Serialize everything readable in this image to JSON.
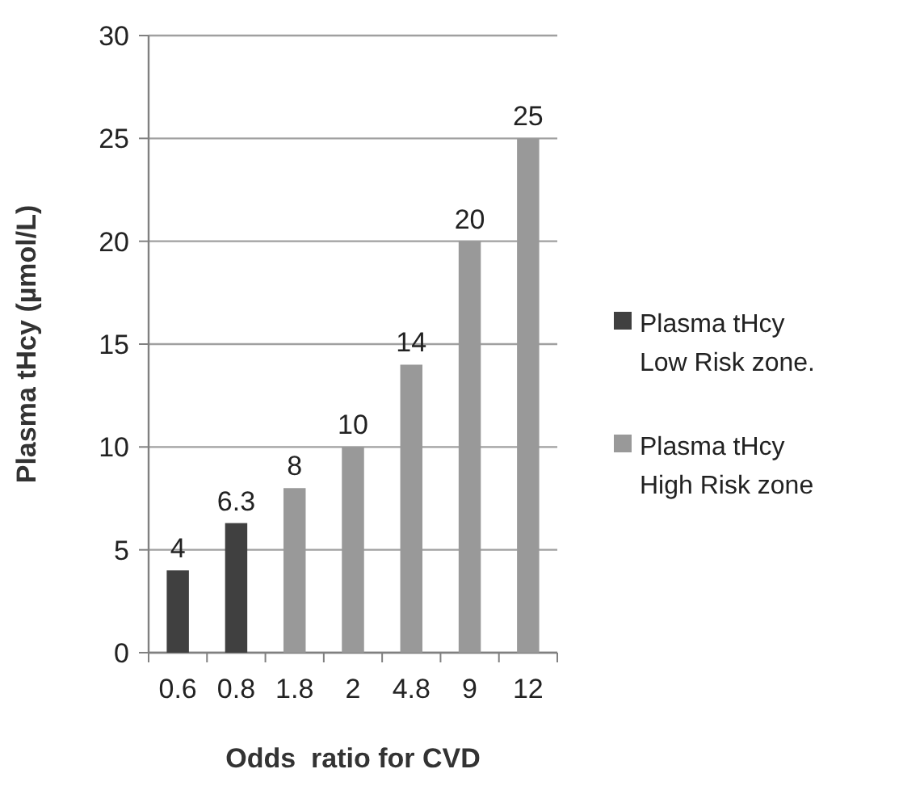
{
  "chart_data": {
    "type": "bar",
    "xlabel": "Odds  ratio for CVD",
    "ylabel": "Plasma tHcy (µmol/L)",
    "categories": [
      "0.6",
      "0.8",
      "1.8",
      "2",
      "4.8",
      "9",
      "12"
    ],
    "series": [
      {
        "name": "Plasma tHcy Low Risk zone.",
        "color": "#404040",
        "values": [
          4,
          6.3,
          null,
          null,
          null,
          null,
          null
        ]
      },
      {
        "name": "Plasma tHcy High Risk zone",
        "color": "#999999",
        "values": [
          null,
          null,
          8,
          10,
          14,
          20,
          25
        ]
      }
    ],
    "stacked": true,
    "ylim": [
      0,
      30
    ],
    "yticks": [
      0,
      5,
      10,
      15,
      20,
      25,
      30
    ],
    "grid": "y",
    "legend": "right",
    "data_labels": true
  }
}
